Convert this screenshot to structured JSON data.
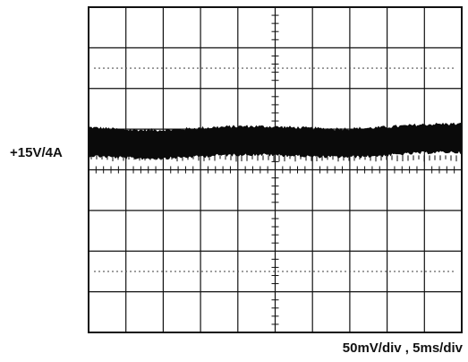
{
  "chart_data": {
    "type": "line",
    "title": "",
    "trace_label": "+15V/4A",
    "scale_label": "50mV/div  ,  5ms/div",
    "x_divisions": 10,
    "y_divisions": 8,
    "series": [
      {
        "x_div": [
          0,
          10
        ],
        "y_div": [
          0.7,
          0.7
        ],
        "ripple_pp_div": 0.6
      }
    ],
    "colors": {
      "trace": "#0a0a0a",
      "grid": "#111111",
      "dotted": "#555555",
      "background": "#ffffff"
    },
    "grid": true
  }
}
